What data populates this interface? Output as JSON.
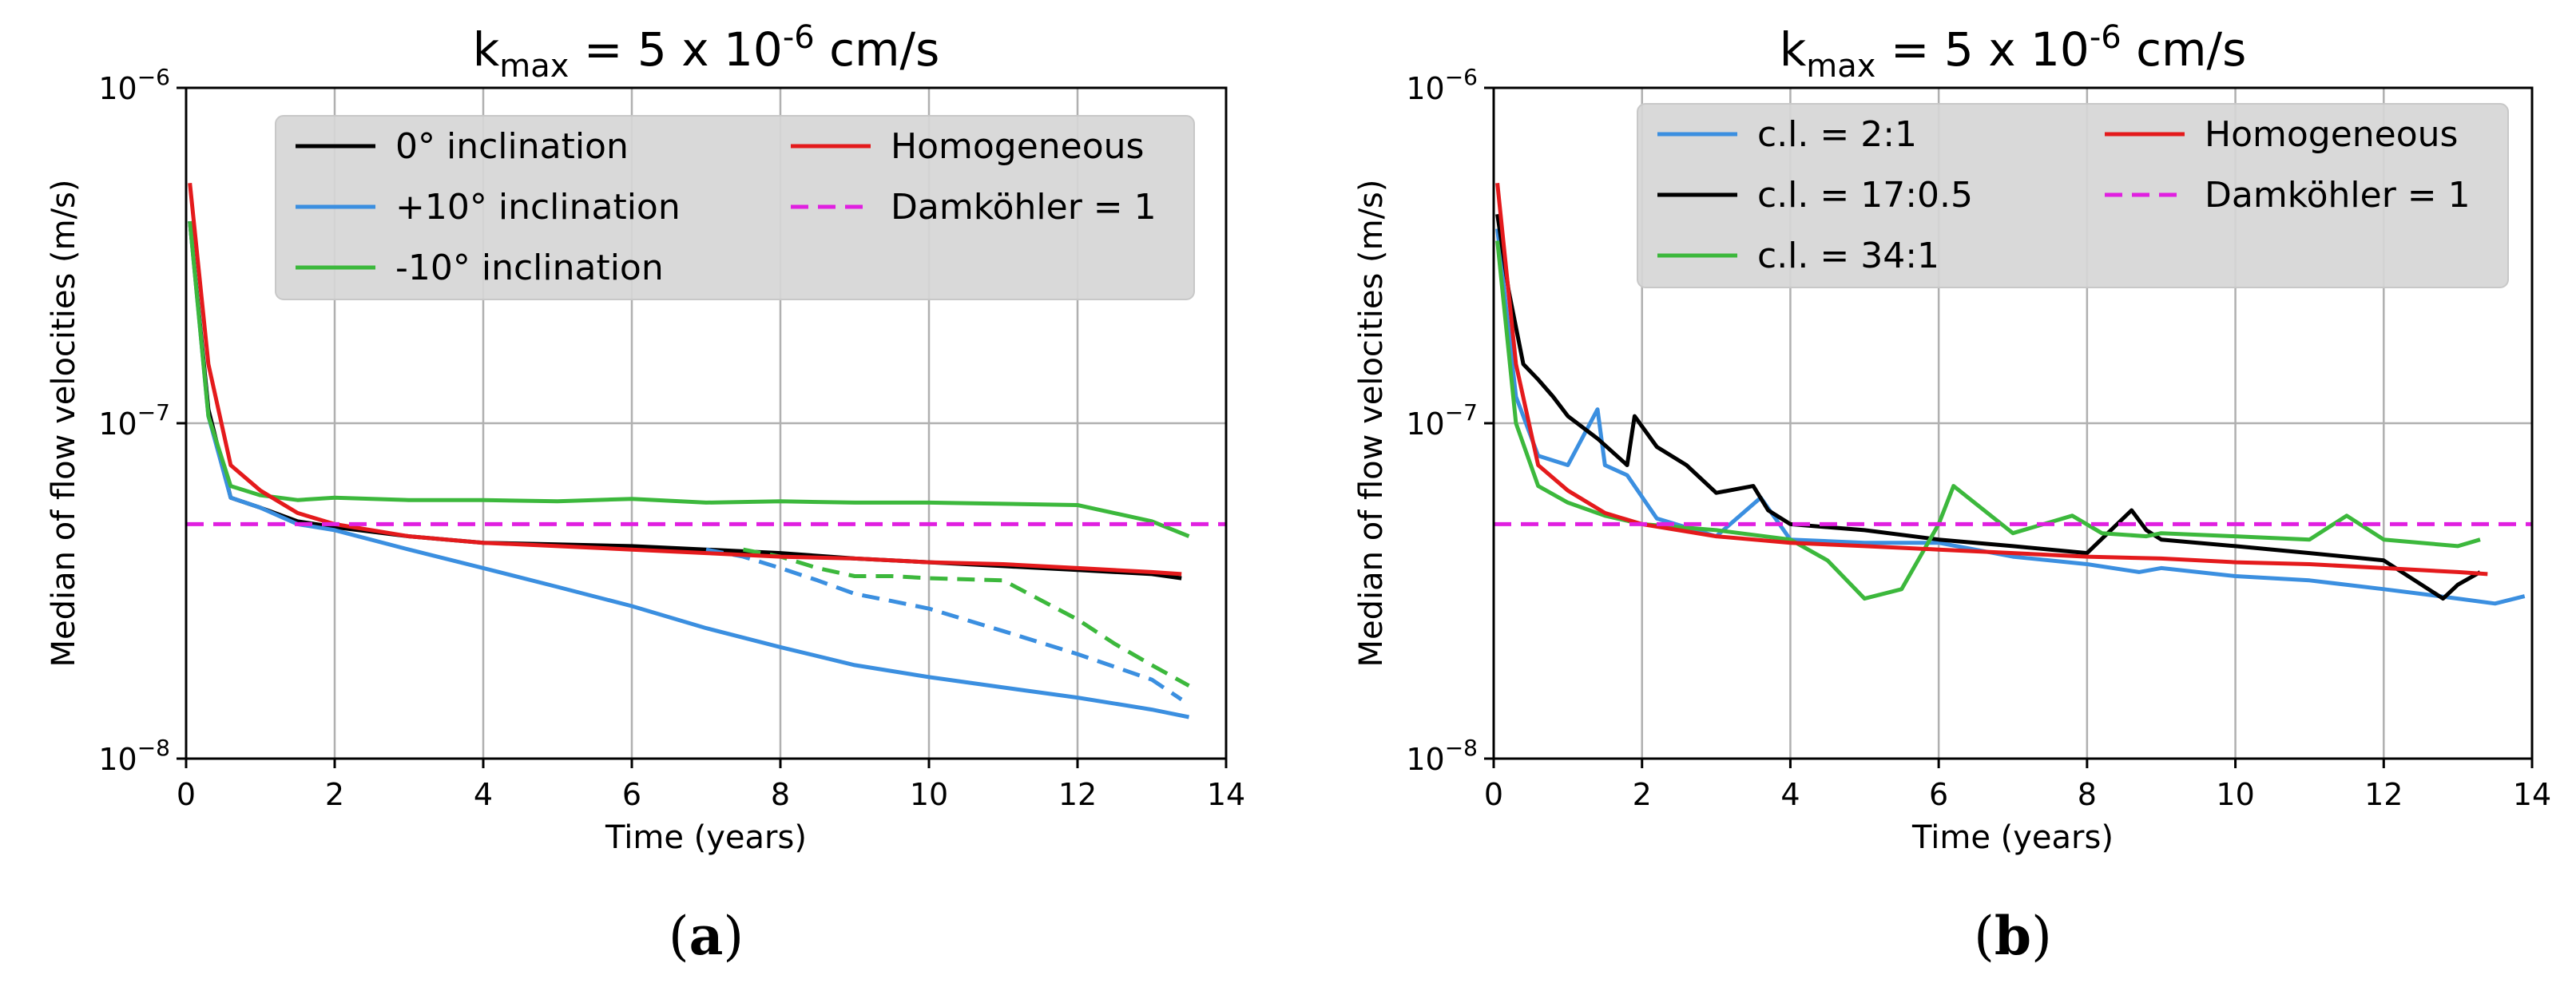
{
  "chart_data": [
    {
      "type": "line",
      "panel_label": "a",
      "title": {
        "main": "k",
        "sub": "max",
        "mid": " = 5 x 10",
        "sup": "-6",
        "tail": " cm/s"
      },
      "xlabel": "Time (years)",
      "ylabel": "Median of flow velocities (m/s)",
      "xlim": [
        0,
        14
      ],
      "ylim": [
        1e-08,
        1e-06
      ],
      "yscale": "log",
      "xticks": [
        "0",
        "2",
        "4",
        "6",
        "8",
        "10",
        "12",
        "14"
      ],
      "yticks": [
        {
          "base": "10",
          "exp": "−8"
        },
        {
          "base": "10",
          "exp": "−7"
        },
        {
          "base": "10",
          "exp": "−6"
        }
      ],
      "legend_position": "top-right",
      "legend_columns": [
        [
          "0° inclination",
          "+10° inclination",
          "-10° inclination"
        ],
        [
          "Homogeneous",
          "Damköhler = 1"
        ]
      ],
      "series": [
        {
          "name": "0° inclination",
          "color": "#000000",
          "style": "solid",
          "x": [
            0.05,
            0.3,
            0.6,
            1.0,
            1.5,
            2,
            3,
            4,
            5,
            6,
            7,
            8,
            9,
            10,
            11,
            12,
            13,
            13.4
          ],
          "y": [
            4e-07,
            1.1e-07,
            6e-08,
            5.6e-08,
            5.1e-08,
            4.9e-08,
            4.6e-08,
            4.4e-08,
            4.35e-08,
            4.3e-08,
            4.2e-08,
            4.1e-08,
            3.95e-08,
            3.85e-08,
            3.75e-08,
            3.65e-08,
            3.55e-08,
            3.45e-08
          ]
        },
        {
          "name": "+10° inclination",
          "color": "#3b8fe0",
          "style": "solid",
          "x": [
            0.05,
            0.3,
            0.6,
            1.0,
            1.5,
            2,
            3,
            4,
            5,
            6,
            7,
            8,
            9,
            10,
            11,
            12,
            13,
            13.5
          ],
          "y": [
            4e-07,
            1.05e-07,
            6e-08,
            5.6e-08,
            5e-08,
            4.8e-08,
            4.2e-08,
            3.7e-08,
            3.25e-08,
            2.85e-08,
            2.45e-08,
            2.15e-08,
            1.9e-08,
            1.75e-08,
            1.63e-08,
            1.52e-08,
            1.4e-08,
            1.33e-08
          ]
        },
        {
          "name": "-10° inclination",
          "color": "#3cb83c",
          "style": "solid",
          "x": [
            0.05,
            0.3,
            0.6,
            1.0,
            1.5,
            2,
            3,
            4,
            5,
            6,
            7,
            8,
            9,
            10,
            11,
            12,
            13,
            13.5
          ],
          "y": [
            4e-07,
            1.05e-07,
            6.5e-08,
            6.1e-08,
            5.9e-08,
            6e-08,
            5.9e-08,
            5.9e-08,
            5.85e-08,
            5.95e-08,
            5.8e-08,
            5.85e-08,
            5.8e-08,
            5.8e-08,
            5.75e-08,
            5.7e-08,
            5.1e-08,
            4.6e-08
          ]
        },
        {
          "name": "+10° inclination (dashed)",
          "color": "#3b8fe0",
          "style": "dashed",
          "x": [
            7.0,
            7.5,
            8.0,
            8.5,
            9.0,
            9.5,
            10,
            11,
            12,
            13,
            13.4
          ],
          "y": [
            4.2e-08,
            4e-08,
            3.7e-08,
            3.4e-08,
            3.1e-08,
            2.95e-08,
            2.8e-08,
            2.4e-08,
            2.05e-08,
            1.72e-08,
            1.5e-08
          ]
        },
        {
          "name": "-10° inclination (dashed)",
          "color": "#3cb83c",
          "style": "dashed",
          "x": [
            7.5,
            8.0,
            8.5,
            9.0,
            9.5,
            10,
            11,
            12,
            12.5,
            13,
            13.5
          ],
          "y": [
            4.2e-08,
            4e-08,
            3.7e-08,
            3.5e-08,
            3.5e-08,
            3.45e-08,
            3.4e-08,
            2.6e-08,
            2.2e-08,
            1.9e-08,
            1.65e-08
          ]
        },
        {
          "name": "Homogeneous",
          "color": "#e41a1c",
          "style": "solid",
          "x": [
            0.05,
            0.3,
            0.6,
            1.0,
            1.5,
            2,
            3,
            4,
            5,
            6,
            7,
            8,
            9,
            10,
            11,
            12,
            13,
            13.4
          ],
          "y": [
            5.2e-07,
            1.5e-07,
            7.5e-08,
            6.3e-08,
            5.4e-08,
            5e-08,
            4.6e-08,
            4.4e-08,
            4.3e-08,
            4.2e-08,
            4.1e-08,
            4e-08,
            3.95e-08,
            3.85e-08,
            3.8e-08,
            3.7e-08,
            3.6e-08,
            3.55e-08
          ]
        },
        {
          "name": "Damköhler = 1",
          "color": "#e020e0",
          "style": "dashed",
          "x": [
            0,
            14
          ],
          "y": [
            5e-08,
            5e-08
          ]
        }
      ]
    },
    {
      "type": "line",
      "panel_label": "b",
      "title": {
        "main": "k",
        "sub": "max",
        "mid": " = 5 x 10",
        "sup": "-6",
        "tail": " cm/s"
      },
      "xlabel": "Time (years)",
      "ylabel": "Median of flow velocities (m/s)",
      "xlim": [
        0,
        14
      ],
      "ylim": [
        1e-08,
        1e-06
      ],
      "yscale": "log",
      "xticks": [
        "0",
        "2",
        "4",
        "6",
        "8",
        "10",
        "12",
        "14"
      ],
      "yticks": [
        {
          "base": "10",
          "exp": "−8"
        },
        {
          "base": "10",
          "exp": "−7"
        },
        {
          "base": "10",
          "exp": "−6"
        }
      ],
      "legend_position": "top",
      "legend_columns": [
        [
          "c.l. = 2:1",
          "c.l. = 17:0.5",
          "c.l. = 34:1"
        ],
        [
          "Homogeneous",
          "Damköhler = 1"
        ]
      ],
      "series": [
        {
          "name": "c.l. = 2:1",
          "color": "#3b8fe0",
          "style": "solid",
          "x": [
            0.05,
            0.3,
            0.6,
            1.0,
            1.4,
            1.5,
            1.8,
            2.2,
            3,
            3.6,
            4,
            5,
            6,
            7,
            8,
            8.7,
            9,
            10,
            11,
            12,
            12.5,
            13,
            13.5,
            13.9
          ],
          "y": [
            3.8e-07,
            1.2e-07,
            8e-08,
            7.5e-08,
            1.1e-07,
            7.5e-08,
            7e-08,
            5.2e-08,
            4.6e-08,
            6e-08,
            4.5e-08,
            4.4e-08,
            4.4e-08,
            4e-08,
            3.8e-08,
            3.6e-08,
            3.7e-08,
            3.5e-08,
            3.4e-08,
            3.2e-08,
            3.1e-08,
            3e-08,
            2.9e-08,
            3.05e-08
          ]
        },
        {
          "name": "c.l. = 17:0.5",
          "color": "#000000",
          "style": "solid",
          "x": [
            0.05,
            0.2,
            0.4,
            0.6,
            0.8,
            1.0,
            1.4,
            1.8,
            1.9,
            2.2,
            2.6,
            3.0,
            3.5,
            3.7,
            4,
            5,
            6,
            7,
            8,
            8.6,
            8.8,
            9,
            10,
            11,
            12,
            12.8,
            13,
            13.3
          ],
          "y": [
            4.2e-07,
            2.5e-07,
            1.5e-07,
            1.35e-07,
            1.2e-07,
            1.05e-07,
            9e-08,
            7.5e-08,
            1.05e-07,
            8.5e-08,
            7.5e-08,
            6.2e-08,
            6.5e-08,
            5.5e-08,
            5e-08,
            4.8e-08,
            4.5e-08,
            4.3e-08,
            4.1e-08,
            5.5e-08,
            4.8e-08,
            4.5e-08,
            4.3e-08,
            4.1e-08,
            3.9e-08,
            3e-08,
            3.3e-08,
            3.6e-08
          ]
        },
        {
          "name": "c.l. = 34:1",
          "color": "#3cb83c",
          "style": "solid",
          "x": [
            0.05,
            0.3,
            0.6,
            1.0,
            1.5,
            2,
            3,
            4,
            4.5,
            5,
            5.5,
            6,
            6.2,
            7,
            7.8,
            8.2,
            8.8,
            9,
            10,
            11,
            11.5,
            12,
            13,
            13.3
          ],
          "y": [
            3.5e-07,
            1e-07,
            6.5e-08,
            5.8e-08,
            5.3e-08,
            5e-08,
            4.8e-08,
            4.5e-08,
            3.9e-08,
            3e-08,
            3.2e-08,
            5e-08,
            6.5e-08,
            4.7e-08,
            5.3e-08,
            4.7e-08,
            4.6e-08,
            4.7e-08,
            4.6e-08,
            4.5e-08,
            5.3e-08,
            4.5e-08,
            4.3e-08,
            4.5e-08
          ]
        },
        {
          "name": "Homogeneous",
          "color": "#e41a1c",
          "style": "solid",
          "x": [
            0.05,
            0.3,
            0.6,
            1.0,
            1.5,
            2,
            3,
            4,
            5,
            6,
            7,
            8,
            9,
            10,
            11,
            12,
            13,
            13.4
          ],
          "y": [
            5.2e-07,
            1.5e-07,
            7.5e-08,
            6.3e-08,
            5.4e-08,
            5e-08,
            4.6e-08,
            4.4e-08,
            4.3e-08,
            4.2e-08,
            4.1e-08,
            4e-08,
            3.95e-08,
            3.85e-08,
            3.8e-08,
            3.7e-08,
            3.6e-08,
            3.55e-08
          ]
        },
        {
          "name": "Damköhler = 1",
          "color": "#e020e0",
          "style": "dashed",
          "x": [
            0,
            14
          ],
          "y": [
            5e-08,
            5e-08
          ]
        }
      ]
    }
  ]
}
